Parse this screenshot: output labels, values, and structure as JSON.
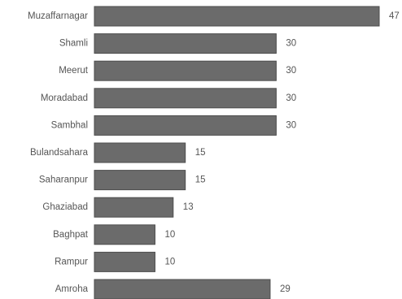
{
  "chart_data": {
    "type": "bar",
    "orientation": "horizontal",
    "categories": [
      "Muzaffarnagar",
      "Shamli",
      "Meerut",
      "Moradabad",
      "Sambhal",
      "Bulandsahara",
      "Saharanpur",
      "Ghaziabad",
      "Baghpat",
      "Rampur",
      "Amroha"
    ],
    "values": [
      47,
      30,
      30,
      30,
      30,
      15,
      15,
      13,
      10,
      10,
      29
    ],
    "value_labels": [
      "47",
      "30",
      "30",
      "30",
      "30",
      "15",
      "15",
      "13",
      "10",
      "10",
      "29"
    ],
    "xlim": [
      0,
      47
    ],
    "grid": false,
    "legend": "none",
    "bar_color": "#6b6b6b",
    "bar_stroke_color": "#4d4d4d",
    "text_color": "#555555"
  }
}
